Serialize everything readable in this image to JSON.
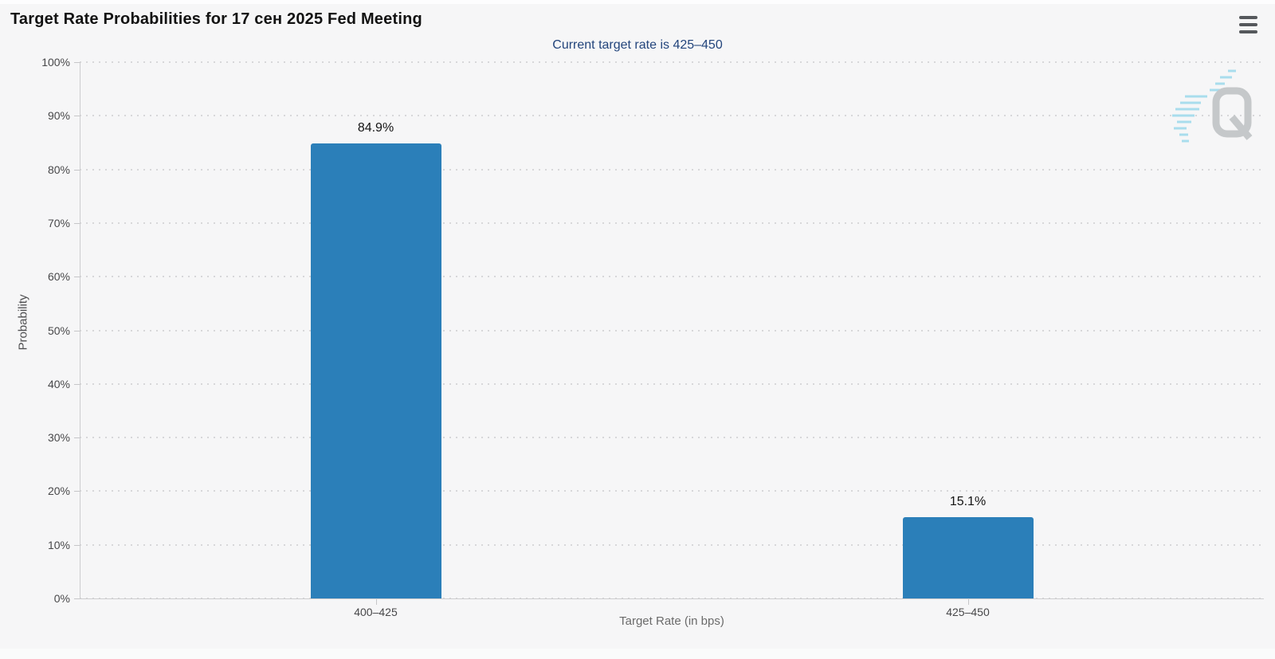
{
  "header": {
    "title": "Target Rate Probabilities for 17 сен 2025 Fed Meeting",
    "menu_icon": "hamburger-menu-icon"
  },
  "chart_data": {
    "type": "bar",
    "title": "Target Rate Probabilities for 17 сен 2025 Fed Meeting",
    "subtitle": "Current target rate is 425–450",
    "xlabel": "Target Rate (in bps)",
    "ylabel": "Probability",
    "categories": [
      "400–425",
      "425–450"
    ],
    "values": [
      84.9,
      15.1
    ],
    "value_labels": [
      "84.9%",
      "15.1%"
    ],
    "ylim": [
      0,
      100
    ],
    "ytick_step": 10,
    "ytick_labels": [
      "0%",
      "10%",
      "20%",
      "30%",
      "40%",
      "50%",
      "60%",
      "70%",
      "80%",
      "90%",
      "100%"
    ],
    "grid": "horizontal-dotted",
    "legend": "none",
    "bar_color": "#2b7fb9"
  },
  "watermark": {
    "letter": "Q"
  },
  "colors": {
    "background": "#f6f6f7",
    "title_text": "#121212",
    "subtitle_text": "#23457c",
    "bar_fill": "#2b7fb9",
    "axis_text": "#48484a",
    "axis_title_text": "#6b6b6b",
    "gridline": "#d7d7d9",
    "axis_line": "#cdcdcf",
    "watermark_gray": "#c5c8ca",
    "watermark_accent": "#a9dded",
    "menu_icon": "#55585c"
  }
}
